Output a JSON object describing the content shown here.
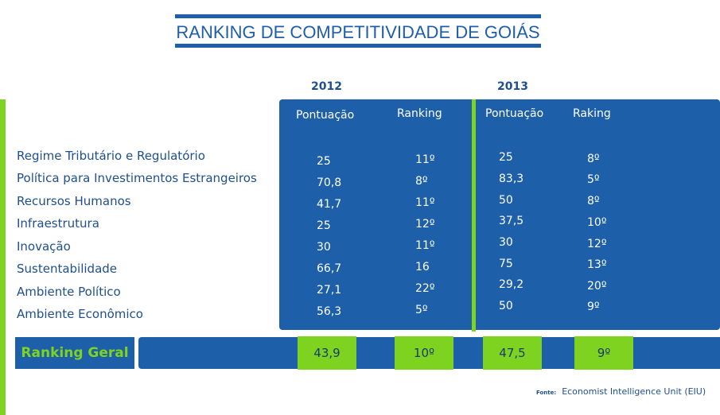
{
  "title": "RANKING DE COMPETITIVIDADE DE GOIÁS",
  "years": [
    "2012",
    "2013"
  ],
  "column_headers": {
    "y2012_score": "Pontuação",
    "y2012_rank": "Ranking",
    "y2013_score": "Pontuação",
    "y2013_rank": "Raking"
  },
  "rows": [
    {
      "label": "Regime Tributário e Regulatório",
      "score_2012": "25",
      "rank_2012": "11º",
      "score_2013": "25",
      "rank_2013": "8º"
    },
    {
      "label": "Política para Investimentos Estrangeiros",
      "score_2012": "70,8",
      "rank_2012": "8º",
      "score_2013": "83,3",
      "rank_2013": "5º"
    },
    {
      "label": "Recursos Humanos",
      "score_2012": "41,7",
      "rank_2012": "11º",
      "score_2013": "50",
      "rank_2013": "8º"
    },
    {
      "label": "Infraestrutura",
      "score_2012": "25",
      "rank_2012": "12º",
      "score_2013": "37,5",
      "rank_2013": "10º"
    },
    {
      "label": "Inovação",
      "score_2012": "30",
      "rank_2012": "11º",
      "score_2013": "30",
      "rank_2013": "12º"
    },
    {
      "label": "Sustentabilidade",
      "score_2012": "66,7",
      "rank_2012": "16",
      "score_2013": "75",
      "rank_2013": "13º"
    },
    {
      "label": "Ambiente Político",
      "score_2012": "27,1",
      "rank_2012": "22º",
      "score_2013": "29,2",
      "rank_2013": "20º"
    },
    {
      "label": "Ambiente Econômico",
      "score_2012": "56,3",
      "rank_2012": "5º",
      "score_2013": "50",
      "rank_2013": "9º"
    }
  ],
  "overall": {
    "label": "Ranking Geral",
    "score_2012": "43,9",
    "rank_2012": "10º",
    "score_2013": "47,5",
    "rank_2013": "9º"
  },
  "source": {
    "prefix": "Fonte:",
    "text": "Economist Intelligence Unit (EIU)"
  },
  "colors": {
    "blue": "#1d5fa8",
    "green": "#7ed321",
    "text_blue": "#1f4f8f"
  },
  "chart_data": {
    "type": "table",
    "title": "RANKING DE COMPETITIVIDADE DE GOIÁS",
    "columns": [
      "2012 Pontuação",
      "2012 Ranking",
      "2013 Pontuação",
      "2013 Raking"
    ],
    "categories": [
      "Regime Tributário e Regulatório",
      "Política para Investimentos Estrangeiros",
      "Recursos Humanos",
      "Infraestrutura",
      "Inovação",
      "Sustentabilidade",
      "Ambiente Político",
      "Ambiente Econômico",
      "Ranking Geral"
    ],
    "series": [
      {
        "name": "Pontuação 2012",
        "values": [
          25,
          70.8,
          41.7,
          25,
          30,
          66.7,
          27.1,
          56.3,
          43.9
        ]
      },
      {
        "name": "Ranking 2012",
        "values": [
          11,
          8,
          11,
          12,
          11,
          16,
          22,
          5,
          10
        ]
      },
      {
        "name": "Pontuação 2013",
        "values": [
          25,
          83.3,
          50,
          37.5,
          30,
          75,
          29.2,
          50,
          47.5
        ]
      },
      {
        "name": "Ranking 2013",
        "values": [
          8,
          5,
          8,
          10,
          12,
          13,
          20,
          9,
          9
        ]
      }
    ]
  }
}
